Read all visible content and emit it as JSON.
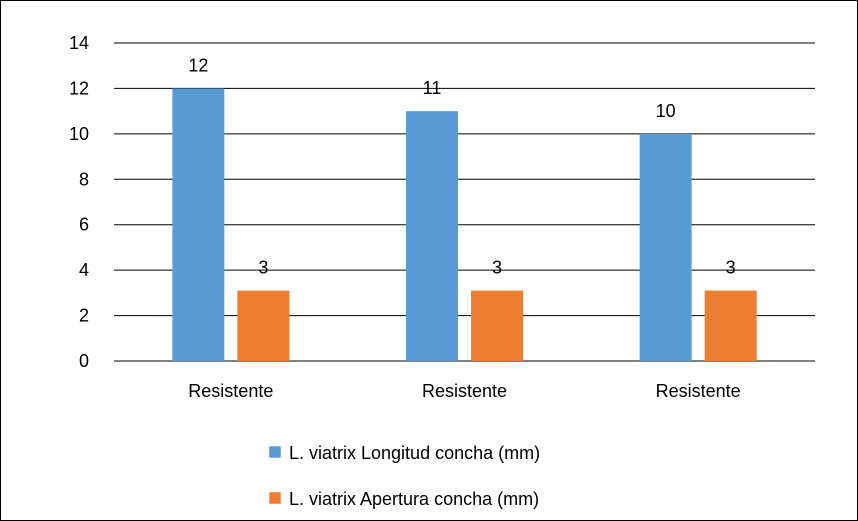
{
  "chart_data": {
    "type": "bar",
    "categories": [
      "Resistente",
      "Resistente",
      "Resistente"
    ],
    "series": [
      {
        "name": "L. viatrix Longitud concha (mm)",
        "values": [
          12,
          11,
          10
        ],
        "color": "#5b9bd5",
        "data_labels": [
          "12",
          "11",
          "10"
        ]
      },
      {
        "name": "L. viatrix Apertura concha (mm)",
        "values": [
          3.1,
          3.1,
          3.1
        ],
        "color": "#ed7d31",
        "data_labels": [
          "3",
          "3",
          "3"
        ]
      }
    ],
    "ylim": [
      0,
      14
    ],
    "yticks": [
      0,
      2,
      4,
      6,
      8,
      10,
      12,
      14
    ],
    "grid": true,
    "legend_position": "bottom"
  }
}
